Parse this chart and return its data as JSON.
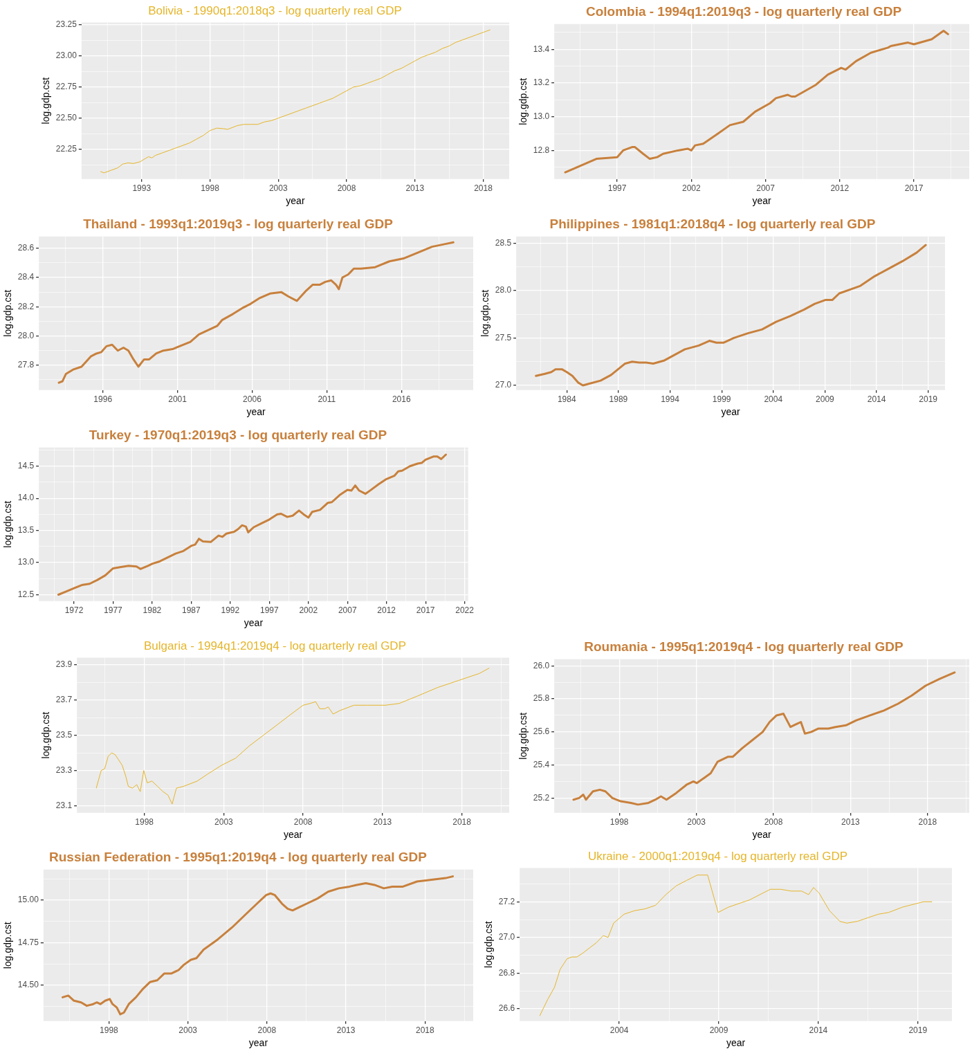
{
  "chart_data": [
    {
      "type": "line",
      "title": "Bolivia - 1990q1:2018q3 - log quarterly real GDP",
      "xlabel": "year",
      "ylabel": "log.gdp.cst",
      "grid": true,
      "x": [
        1990.0,
        1990.25,
        1990.75,
        1991.25,
        1991.6,
        1992.0,
        1992.4,
        1992.9,
        1993.5,
        1993.75,
        1994.0,
        1994.5,
        1995.0,
        1995.5,
        1996.0,
        1996.5,
        1997.0,
        1997.5,
        1998.0,
        1998.5,
        1999.0,
        1999.3,
        2000.0,
        2000.5,
        2001.0,
        2001.5,
        2002.0,
        2002.5,
        2003.0,
        2003.5,
        2004.0,
        2004.5,
        2005.0,
        2005.5,
        2006.0,
        2006.5,
        2007.0,
        2007.5,
        2008.0,
        2008.5,
        2009.0,
        2009.5,
        2010.0,
        2010.5,
        2011.0,
        2011.5,
        2012.0,
        2012.5,
        2013.0,
        2013.5,
        2014.0,
        2014.5,
        2015.0,
        2015.5,
        2016.0,
        2016.5,
        2017.0,
        2017.5,
        2018.0,
        2018.5
      ],
      "series": [
        {
          "color": "#e5b52a",
          "values": [
            22.07,
            22.06,
            22.08,
            22.1,
            22.13,
            22.14,
            22.135,
            22.15,
            22.19,
            22.18,
            22.2,
            22.22,
            22.24,
            22.26,
            22.28,
            22.3,
            22.33,
            22.36,
            22.4,
            22.42,
            22.415,
            22.41,
            22.44,
            22.45,
            22.45,
            22.45,
            22.47,
            22.48,
            22.5,
            22.52,
            22.54,
            22.56,
            22.58,
            22.6,
            22.62,
            22.64,
            22.66,
            22.69,
            22.72,
            22.75,
            22.76,
            22.78,
            22.8,
            22.82,
            22.85,
            22.88,
            22.9,
            22.93,
            22.96,
            22.99,
            23.01,
            23.03,
            23.06,
            23.08,
            23.11,
            23.13,
            23.15,
            23.17,
            23.19,
            23.21
          ]
        }
      ],
      "xlim": [
        1988.6,
        2019.9
      ],
      "xticks": [
        {
          "value": 1990.5,
          "label": null
        },
        1993,
        {
          "value": 1995.5,
          "label": null
        },
        1998,
        {
          "value": 2000.5,
          "label": null
        },
        2003,
        {
          "value": 2005.5,
          "label": null
        },
        2008,
        {
          "value": 2010.5,
          "label": null
        },
        2013,
        {
          "value": 2015.5,
          "label": null
        },
        2018
      ],
      "ylim": [
        22.01,
        23.27
      ],
      "yticks": [
        {
          "value": 22.125,
          "label": null
        },
        22.25,
        {
          "value": 22.375,
          "label": null
        },
        {
          "value": 22.5,
          "label": "22.50"
        },
        {
          "value": 22.625,
          "label": null
        },
        22.75,
        {
          "value": 22.875,
          "label": null
        },
        {
          "value": 23,
          "label": "23.00"
        },
        {
          "value": 23.125,
          "label": null
        },
        23.25
      ]
    },
    {
      "type": "line",
      "title": "Colombia - 1994q1:2019q3 - log quarterly real GDP",
      "xlabel": "year",
      "ylabel": "log.gdp.cst",
      "grid": true,
      "x": [
        1993.5,
        1995.6,
        1997.0,
        1997.4,
        1998.0,
        1998.2,
        1998.75,
        1999.2,
        1999.7,
        2000.1,
        2001.1,
        2001.75,
        2002.0,
        2002.25,
        2002.8,
        2003.8,
        2004.6,
        2005.5,
        2006.3,
        2007.3,
        2007.7,
        2008.5,
        2008.75,
        2009.0,
        2009.6,
        2010.4,
        2011.2,
        2012.1,
        2012.4,
        2013.1,
        2014.1,
        2015.25,
        2015.45,
        2016.6,
        2017.0,
        2018.2,
        2019.0,
        2019.3
      ],
      "series": [
        {
          "color": "#c8803c",
          "values": [
            12.67,
            12.75,
            12.76,
            12.8,
            12.82,
            12.82,
            12.78,
            12.75,
            12.76,
            12.78,
            12.8,
            12.81,
            12.8,
            12.83,
            12.84,
            12.9,
            12.95,
            12.97,
            13.03,
            13.08,
            13.11,
            13.13,
            13.12,
            13.12,
            13.15,
            13.19,
            13.25,
            13.29,
            13.28,
            13.33,
            13.38,
            13.41,
            13.42,
            13.44,
            13.43,
            13.46,
            13.51,
            13.49
          ]
        }
      ],
      "xlim": [
        1992.76,
        2020.73
      ],
      "xticks": [
        {
          "value": 1994.5,
          "label": null
        },
        1997,
        {
          "value": 1999.5,
          "label": null
        },
        2002,
        {
          "value": 2004.5,
          "label": null
        },
        2007,
        {
          "value": 2009.5,
          "label": null
        },
        2012,
        {
          "value": 2014.5,
          "label": null
        },
        2017,
        {
          "value": 2019.5,
          "label": null
        }
      ],
      "ylim": [
        12.63,
        13.55
      ],
      "yticks": [
        {
          "value": 12.7,
          "label": null
        },
        12.8,
        {
          "value": 12.9,
          "label": null
        },
        {
          "value": 13,
          "label": "13.0"
        },
        {
          "value": 13.1,
          "label": null
        },
        13.2,
        {
          "value": 13.3,
          "label": null
        },
        13.4,
        {
          "value": 13.5,
          "label": null
        }
      ]
    },
    {
      "type": "line",
      "title": "Thailand - 1993q1:2019q3 - log quarterly real GDP",
      "xlabel": "year",
      "ylabel": "log.gdp.cst",
      "grid": true,
      "x": [
        1993.05,
        1993.29,
        1993.52,
        1994.0,
        1994.57,
        1995.19,
        1995.57,
        1995.9,
        1996.24,
        1996.62,
        1997.0,
        1997.38,
        1997.71,
        1998.05,
        1998.38,
        1998.76,
        1999.1,
        1999.57,
        2000.05,
        2000.67,
        2001.14,
        2001.86,
        2002.43,
        2003.05,
        2003.67,
        2004.0,
        2004.71,
        2005.33,
        2005.9,
        2006.52,
        2007.19,
        2007.95,
        2008.43,
        2009.0,
        2009.62,
        2010.05,
        2010.52,
        2010.9,
        2011.29,
        2011.62,
        2011.81,
        2012.05,
        2012.43,
        2012.81,
        2013.29,
        2014.24,
        2015.19,
        2016.14,
        2017.1,
        2018.05,
        2019.0,
        2019.48
      ],
      "series": [
        {
          "color": "#c8803c",
          "values": [
            27.68,
            27.69,
            27.74,
            27.77,
            27.79,
            27.86,
            27.88,
            27.89,
            27.93,
            27.94,
            27.9,
            27.92,
            27.9,
            27.84,
            27.79,
            27.84,
            27.84,
            27.88,
            27.9,
            27.91,
            27.93,
            27.96,
            28.01,
            28.04,
            28.07,
            28.11,
            28.15,
            28.19,
            28.22,
            28.26,
            28.29,
            28.3,
            28.27,
            28.24,
            28.31,
            28.35,
            28.35,
            28.37,
            28.38,
            28.35,
            28.32,
            28.4,
            28.42,
            28.46,
            28.46,
            28.47,
            28.51,
            28.53,
            28.57,
            28.61,
            28.63,
            28.64
          ]
        }
      ],
      "xlim": [
        1991.71,
        2020.81
      ],
      "xticks": [
        {
          "value": 1993.5,
          "label": null
        },
        1996,
        {
          "value": 1998.5,
          "label": null
        },
        2001,
        {
          "value": 2003.5,
          "label": null
        },
        2006,
        {
          "value": 2008.5,
          "label": null
        },
        2011,
        {
          "value": 2013.5,
          "label": null
        },
        2016,
        {
          "value": 2018.5,
          "label": null
        }
      ],
      "ylim": [
        27.63,
        28.68
      ],
      "yticks": [
        {
          "value": 27.7,
          "label": null
        },
        27.8,
        {
          "value": 27.9,
          "label": null
        },
        {
          "value": 28,
          "label": "28.0"
        },
        {
          "value": 28.1,
          "label": null
        },
        28.2,
        {
          "value": 28.3,
          "label": null
        },
        28.4,
        {
          "value": 28.5,
          "label": null
        },
        28.6
      ]
    },
    {
      "type": "line",
      "title": "Philippines - 1981q1:2018q4 - log quarterly real GDP",
      "xlabel": "year",
      "ylabel": "log.gdp.cst",
      "grid": true,
      "x": [
        1981.01,
        1981.82,
        1982.5,
        1982.91,
        1983.52,
        1984.0,
        1984.54,
        1985.09,
        1985.56,
        1986.24,
        1987.27,
        1988.29,
        1988.97,
        1989.65,
        1990.33,
        1991.01,
        1991.69,
        1992.37,
        1993.39,
        1994.41,
        1995.43,
        1996.79,
        1997.81,
        1998.49,
        1999.17,
        2000.19,
        2001.55,
        2002.91,
        2004.27,
        2005.63,
        2006.99,
        2008.01,
        2009.03,
        2009.71,
        2010.39,
        2011.41,
        2012.44,
        2013.8,
        2015.16,
        2016.52,
        2017.88,
        2018.76
      ],
      "series": [
        {
          "color": "#c8803c",
          "values": [
            27.1,
            27.12,
            27.14,
            27.17,
            27.17,
            27.14,
            27.1,
            27.03,
            27.0,
            27.02,
            27.05,
            27.11,
            27.17,
            27.23,
            27.25,
            27.24,
            27.24,
            27.23,
            27.26,
            27.32,
            27.38,
            27.42,
            27.47,
            27.45,
            27.45,
            27.5,
            27.55,
            27.59,
            27.67,
            27.73,
            27.8,
            27.86,
            27.9,
            27.9,
            27.97,
            28.01,
            28.05,
            28.15,
            28.23,
            28.31,
            28.4,
            28.48
          ]
        }
      ],
      "xlim": [
        1979.1,
        2020.63
      ],
      "xticks": [
        {
          "value": 1981.5,
          "label": null
        },
        1984,
        {
          "value": 1986.5,
          "label": null
        },
        1989,
        {
          "value": 1991.5,
          "label": null
        },
        1994,
        {
          "value": 1996.5,
          "label": null
        },
        1999,
        {
          "value": 2001.5,
          "label": null
        },
        2004,
        {
          "value": 2006.5,
          "label": null
        },
        2009,
        {
          "value": 2011.5,
          "label": null
        },
        2014,
        {
          "value": 2016.5,
          "label": null
        },
        2019
      ],
      "ylim": [
        26.95,
        28.57
      ],
      "yticks": [
        {
          "value": 27,
          "label": "27.0"
        },
        {
          "value": 27.25,
          "label": null
        },
        27.5,
        {
          "value": 27.75,
          "label": null
        },
        {
          "value": 28,
          "label": "28.0"
        },
        {
          "value": 28.25,
          "label": null
        },
        28.5
      ]
    },
    {
      "type": "line",
      "title": "Turkey - 1970q1:2019q3 - log quarterly real GDP",
      "xlabel": "year",
      "ylabel": "log.gdp.cst",
      "grid": true,
      "x": [
        1970.0,
        1971,
        1972,
        1973,
        1974,
        1975,
        1976,
        1977,
        1978,
        1979,
        1980,
        1980.5,
        1981.5,
        1982,
        1983,
        1984,
        1985,
        1986,
        1987,
        1987.5,
        1988,
        1988.5,
        1989.5,
        1990.5,
        1991,
        1991.5,
        1992.5,
        1993,
        1993.5,
        1994,
        1994.3,
        1995,
        1996,
        1997,
        1998,
        1998.5,
        1999.3,
        2000,
        2000.8,
        2001.5,
        2002,
        2002.5,
        2003.5,
        2004.5,
        2005,
        2006,
        2007,
        2007.5,
        2008,
        2008.5,
        2009.3,
        2010,
        2011,
        2012,
        2013,
        2013.5,
        2014,
        2015,
        2016,
        2016.5,
        2017,
        2018,
        2018.5,
        2019,
        2019.6
      ],
      "series": [
        {
          "color": "#c8803c",
          "values": [
            12.5,
            12.55,
            12.6,
            12.65,
            12.67,
            12.73,
            12.8,
            12.91,
            12.93,
            12.95,
            12.94,
            12.9,
            12.95,
            12.98,
            13.02,
            13.08,
            13.14,
            13.18,
            13.26,
            13.28,
            13.37,
            13.33,
            13.32,
            13.42,
            13.4,
            13.45,
            13.48,
            13.52,
            13.58,
            13.56,
            13.47,
            13.55,
            13.61,
            13.67,
            13.75,
            13.76,
            13.71,
            13.73,
            13.81,
            13.74,
            13.7,
            13.79,
            13.82,
            13.93,
            13.94,
            14.05,
            14.13,
            14.12,
            14.2,
            14.12,
            14.07,
            14.13,
            14.22,
            14.3,
            14.35,
            14.42,
            14.43,
            14.5,
            14.54,
            14.55,
            14.6,
            14.65,
            14.65,
            14.61,
            14.68
          ]
        }
      ],
      "xlim": [
        1967.5,
        2022.45
      ],
      "xticks": [
        {
          "value": 1969.5,
          "label": null
        },
        1972,
        {
          "value": 1974.5,
          "label": null
        },
        1977,
        {
          "value": 1979.5,
          "label": null
        },
        1982,
        {
          "value": 1984.5,
          "label": null
        },
        1987,
        {
          "value": 1989.5,
          "label": null
        },
        1992,
        {
          "value": 1994.5,
          "label": null
        },
        1997,
        {
          "value": 1999.5,
          "label": null
        },
        2002,
        {
          "value": 2004.5,
          "label": null
        },
        2007,
        {
          "value": 2009.5,
          "label": null
        },
        2012,
        {
          "value": 2014.5,
          "label": null
        },
        2017,
        {
          "value": 2019.5,
          "label": null
        },
        2022
      ],
      "ylim": [
        12.4,
        14.79
      ],
      "yticks": [
        12.5,
        {
          "value": 12.75,
          "label": null
        },
        {
          "value": 13,
          "label": "13.0"
        },
        {
          "value": 13.25,
          "label": null
        },
        13.5,
        {
          "value": 13.75,
          "label": null
        },
        {
          "value": 14,
          "label": "14.0"
        },
        {
          "value": 14.25,
          "label": null
        },
        14.5,
        {
          "value": 14.75,
          "label": null
        }
      ]
    },
    {
      "type": "line",
      "title": "Bulgaria - 1994q1:2019q4 - log quarterly real GDP",
      "xlabel": "year",
      "ylabel": "log.gdp.cst",
      "grid": true,
      "x": [
        1994.97,
        1995.28,
        1995.5,
        1995.72,
        1995.94,
        1996.16,
        1996.38,
        1996.6,
        1996.82,
        1996.99,
        1997.25,
        1997.52,
        1997.74,
        1997.96,
        1998.18,
        1998.48,
        1998.83,
        1999.18,
        1999.49,
        1999.75,
        2000.02,
        2000.46,
        2001.33,
        2001.99,
        2002.87,
        2003.75,
        2004.62,
        2005.5,
        2006.38,
        2007.25,
        2008.0,
        2008.44,
        2008.79,
        2009.05,
        2009.36,
        2009.58,
        2009.89,
        2010.32,
        2011.2,
        2012.08,
        2013.18,
        2014.05,
        2015.15,
        2016.46,
        2017.78,
        2019.1,
        2019.71
      ],
      "series": [
        {
          "color": "#e5b52a",
          "values": [
            23.2,
            23.3,
            23.31,
            23.38,
            23.4,
            23.39,
            23.36,
            23.33,
            23.27,
            23.21,
            23.2,
            23.22,
            23.18,
            23.3,
            23.23,
            23.24,
            23.21,
            23.18,
            23.16,
            23.11,
            23.2,
            23.21,
            23.24,
            23.28,
            23.33,
            23.37,
            23.44,
            23.5,
            23.56,
            23.62,
            23.67,
            23.68,
            23.69,
            23.65,
            23.65,
            23.66,
            23.62,
            23.64,
            23.67,
            23.67,
            23.67,
            23.68,
            23.72,
            23.77,
            23.81,
            23.85,
            23.88
          ]
        }
      ],
      "xlim": [
        1993.75,
        2020.98
      ],
      "xticks": [
        {
          "value": 1995.5,
          "label": null
        },
        1998,
        {
          "value": 2000.5,
          "label": null
        },
        2003,
        {
          "value": 2005.5,
          "label": null
        },
        2008,
        {
          "value": 2010.5,
          "label": null
        },
        2013,
        {
          "value": 2015.5,
          "label": null
        },
        2018,
        {
          "value": 2020.5,
          "label": null
        }
      ],
      "ylim": [
        23.06,
        23.94
      ],
      "yticks": [
        23.1,
        {
          "value": 23.2,
          "label": null
        },
        23.3,
        {
          "value": 23.4,
          "label": null
        },
        23.5,
        {
          "value": 23.6,
          "label": null
        },
        23.7,
        {
          "value": 23.8,
          "label": null
        },
        23.9
      ]
    },
    {
      "type": "line",
      "title": "Roumania - 1995q1:2019q4 - log quarterly real GDP",
      "xlabel": "year",
      "ylabel": "log.gdp.cst",
      "grid": true,
      "x": [
        1995.03,
        1995.39,
        1995.66,
        1995.84,
        1996.29,
        1996.74,
        1997.1,
        1997.55,
        1998.09,
        1998.76,
        1999.21,
        1999.89,
        2000.34,
        2000.7,
        2001.06,
        2001.69,
        2002.36,
        2002.81,
        2003.03,
        2003.48,
        2003.93,
        2004.38,
        2005.06,
        2005.37,
        2005.96,
        2006.63,
        2007.3,
        2007.75,
        2008.2,
        2008.65,
        2009.1,
        2009.55,
        2009.78,
        2010.04,
        2010.45,
        2010.9,
        2011.57,
        2012.02,
        2012.7,
        2013.37,
        2014.27,
        2015.17,
        2016.07,
        2016.97,
        2017.87,
        2018.76,
        2019.75
      ],
      "series": [
        {
          "color": "#c8803c",
          "values": [
            25.19,
            25.2,
            25.22,
            25.19,
            25.24,
            25.25,
            25.24,
            25.2,
            25.18,
            25.17,
            25.16,
            25.17,
            25.19,
            25.21,
            25.19,
            25.23,
            25.28,
            25.3,
            25.29,
            25.32,
            25.35,
            25.42,
            25.45,
            25.45,
            25.5,
            25.55,
            25.6,
            25.66,
            25.7,
            25.71,
            25.63,
            25.65,
            25.66,
            25.59,
            25.6,
            25.62,
            25.62,
            25.63,
            25.64,
            25.67,
            25.7,
            25.73,
            25.77,
            25.82,
            25.88,
            25.92,
            25.96
          ]
        }
      ],
      "xlim": [
        1993.78,
        2020.7
      ],
      "xticks": [
        {
          "value": 1995.5,
          "label": null
        },
        1998,
        {
          "value": 2000.5,
          "label": null
        },
        2003,
        {
          "value": 2005.5,
          "label": null
        },
        2008,
        {
          "value": 2010.5,
          "label": null
        },
        2013,
        {
          "value": 2015.5,
          "label": null
        },
        2018,
        {
          "value": 2020.5,
          "label": null
        }
      ],
      "ylim": [
        25.11,
        26.04
      ],
      "yticks": [
        25.2,
        {
          "value": 25.3,
          "label": null
        },
        25.4,
        {
          "value": 25.5,
          "label": null
        },
        25.6,
        {
          "value": 25.7,
          "label": null
        },
        25.8,
        {
          "value": 25.9,
          "label": null
        },
        {
          "value": 26,
          "label": "26.0"
        }
      ]
    },
    {
      "type": "line",
      "title": "Russian Federation - 1995q1:2019q4 - log quarterly real GDP",
      "xlabel": "year",
      "ylabel": "log.gdp.cst",
      "grid": true,
      "x": [
        1995.07,
        1995.43,
        1995.79,
        1996.24,
        1996.6,
        1997.01,
        1997.23,
        1997.46,
        1997.77,
        1998.05,
        1998.23,
        1998.5,
        1998.72,
        1998.95,
        1999.26,
        1999.71,
        2000.16,
        2000.61,
        2001.06,
        2001.51,
        2001.96,
        2002.41,
        2002.73,
        2003.18,
        2003.54,
        2003.99,
        2004.89,
        2005.79,
        2006.69,
        2007.37,
        2007.95,
        2008.23,
        2008.5,
        2008.95,
        2009.31,
        2009.62,
        2010.07,
        2010.52,
        2011.2,
        2011.87,
        2012.55,
        2013.23,
        2013.68,
        2014.26,
        2014.8,
        2015.39,
        2015.93,
        2016.6,
        2017.5,
        2018.41,
        2019.31,
        2019.76
      ],
      "series": [
        {
          "color": "#c8803c",
          "values": [
            14.43,
            14.44,
            14.41,
            14.4,
            14.38,
            14.39,
            14.4,
            14.39,
            14.41,
            14.42,
            14.39,
            14.37,
            14.33,
            14.34,
            14.39,
            14.43,
            14.48,
            14.52,
            14.53,
            14.57,
            14.57,
            14.59,
            14.62,
            14.65,
            14.66,
            14.71,
            14.77,
            14.84,
            14.92,
            14.98,
            15.03,
            15.04,
            15.03,
            14.98,
            14.95,
            14.94,
            14.96,
            14.98,
            15.01,
            15.05,
            15.07,
            15.08,
            15.09,
            15.1,
            15.09,
            15.07,
            15.08,
            15.08,
            15.11,
            15.12,
            15.13,
            15.14
          ]
        }
      ],
      "xlim": [
        1993.86,
        2021.05
      ],
      "xticks": [
        {
          "value": 1995.5,
          "label": null
        },
        1998,
        {
          "value": 2000.5,
          "label": null
        },
        2003,
        {
          "value": 2005.5,
          "label": null
        },
        2008,
        {
          "value": 2010.5,
          "label": null
        },
        2013,
        {
          "value": 2015.5,
          "label": null
        },
        2018,
        {
          "value": 2020.5,
          "label": null
        }
      ],
      "ylim": [
        14.29,
        15.18
      ],
      "yticks": [
        {
          "value": 14.375,
          "label": null
        },
        {
          "value": 14.5,
          "label": "14.50"
        },
        {
          "value": 14.625,
          "label": null
        },
        14.75,
        {
          "value": 14.875,
          "label": null
        },
        {
          "value": 15,
          "label": "15.00"
        },
        {
          "value": 15.125,
          "label": null
        }
      ]
    },
    {
      "type": "line",
      "title": "Ukraine - 2000q1:2019q4 - log quarterly real GDP",
      "xlabel": "year",
      "ylabel": "log.gdp.cst",
      "grid": true,
      "x": [
        2000.01,
        2000.4,
        2000.75,
        2001.03,
        2001.38,
        2001.62,
        2001.87,
        2002.15,
        2002.5,
        2002.85,
        2003.2,
        2003.44,
        2003.72,
        2004.24,
        2004.77,
        2005.29,
        2005.82,
        2006.34,
        2006.87,
        2007.39,
        2007.92,
        2008.44,
        2008.97,
        2009.49,
        2010.01,
        2010.54,
        2011.06,
        2011.59,
        2012.11,
        2012.64,
        2013.16,
        2013.51,
        2013.76,
        2014.03,
        2014.56,
        2015.08,
        2015.43,
        2015.96,
        2016.48,
        2017.01,
        2017.53,
        2018.23,
        2018.93,
        2019.28,
        2019.7
      ],
      "series": [
        {
          "color": "#e5b52a",
          "values": [
            26.56,
            26.65,
            26.72,
            26.82,
            26.88,
            26.89,
            26.89,
            26.91,
            26.94,
            26.97,
            27.01,
            27.0,
            27.08,
            27.13,
            27.15,
            27.16,
            27.18,
            27.24,
            27.29,
            27.32,
            27.35,
            27.35,
            27.14,
            27.17,
            27.19,
            27.21,
            27.24,
            27.27,
            27.27,
            27.26,
            27.26,
            27.24,
            27.28,
            27.25,
            27.15,
            27.09,
            27.08,
            27.09,
            27.11,
            27.13,
            27.14,
            27.17,
            27.19,
            27.2,
            27.2
          ]
        }
      ],
      "xlim": [
        1999.0,
        2020.71
      ],
      "xticks": [
        {
          "value": 2001.5,
          "label": null
        },
        2004,
        {
          "value": 2006.5,
          "label": null
        },
        2009,
        {
          "value": 2011.5,
          "label": null
        },
        2014,
        {
          "value": 2016.5,
          "label": null
        },
        2019
      ],
      "ylim": [
        26.53,
        27.39
      ],
      "yticks": [
        26.6,
        {
          "value": 26.7,
          "label": null
        },
        26.8,
        {
          "value": 26.9,
          "label": null
        },
        {
          "value": 27,
          "label": "27.0"
        },
        {
          "value": 27.1,
          "label": null
        },
        27.2,
        {
          "value": 27.3,
          "label": null
        }
      ]
    }
  ]
}
